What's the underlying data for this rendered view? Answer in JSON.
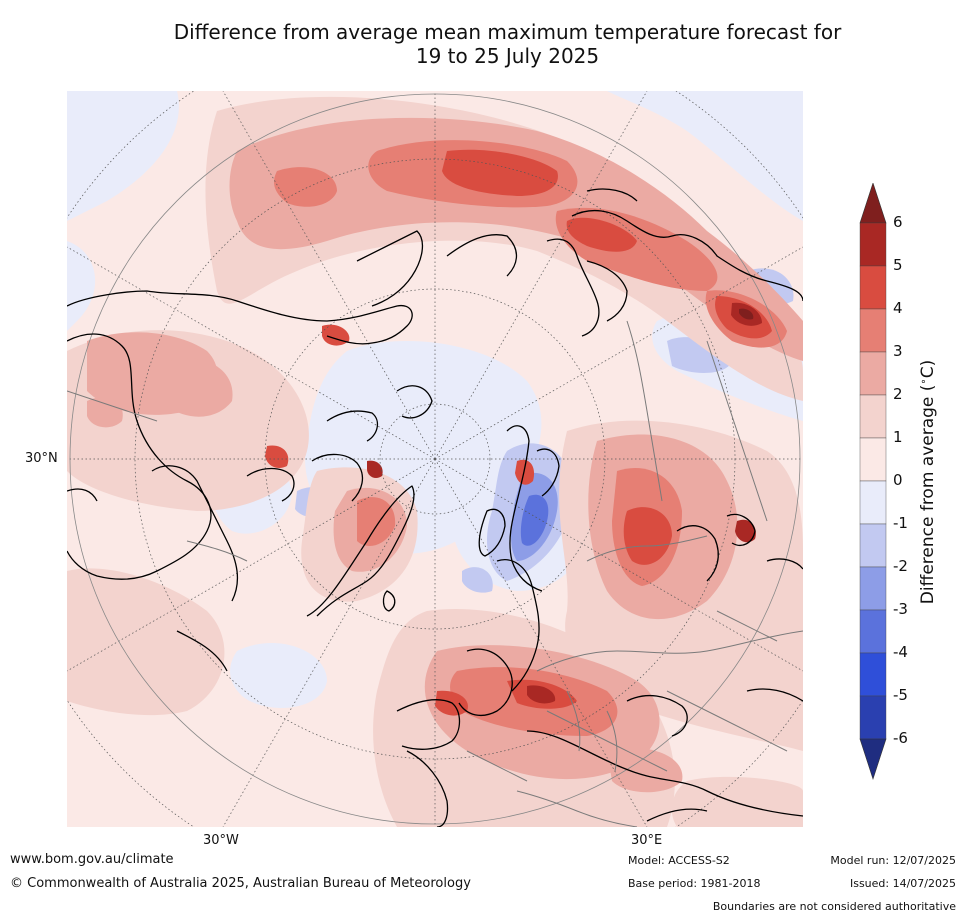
{
  "title_line1": "Difference from average mean maximum temperature forecast for",
  "title_line2": "19 to 25 July 2025",
  "map": {
    "projection": "north-polar-stereographic",
    "grid": true,
    "labels": {
      "lat_30n": "30°N",
      "lon_30w": "30°W",
      "lon_30e": "30°E"
    }
  },
  "colorbar": {
    "label": "Difference from average (°C)",
    "label_text": "Difference from average (",
    "label_unit": "C)",
    "label_degree": "∘",
    "ticks": [
      "6",
      "5",
      "4",
      "3",
      "2",
      "1",
      "0",
      "-1",
      "-2",
      "-3",
      "-4",
      "-5",
      "-6"
    ],
    "colors_top_to_bottom": [
      "#a92824",
      "#d94c40",
      "#e67f74",
      "#ebaaa3",
      "#f3d3ce",
      "#fbe9e6",
      "#e9ecfa",
      "#c2c9f1",
      "#8d9de7",
      "#5b72dc",
      "#2f4fd9",
      "#2a40b0"
    ],
    "over_color": "#7f1f1e",
    "under_color": "#1f2d80",
    "extend": "both"
  },
  "footer": {
    "site": "www.bom.gov.au/climate",
    "copyright": "© Commonwealth of Australia 2025, Australian Bureau of Meteorology",
    "model": "Model: ACCESS-S2",
    "base_period": "Base period: 1981-2018",
    "model_run": "Model run: 12/07/2025",
    "issued": "Issued: 14/07/2025",
    "disclaimer": "Boundaries are not considered authoritative"
  }
}
